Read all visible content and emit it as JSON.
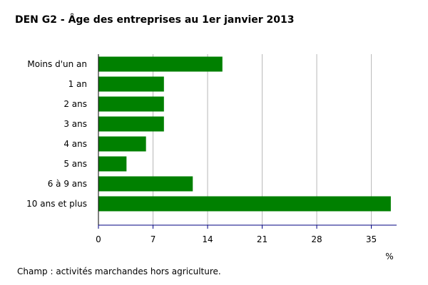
{
  "chart_data": {
    "type": "bar",
    "orientation": "horizontal",
    "title": "DEN G2 - Âge des entreprises au 1er janvier 2013",
    "categories": [
      "Moins d'un an",
      "1 an",
      "2 ans",
      "3 ans",
      "4 ans",
      "5 ans",
      "6 à 9 ans",
      "10 ans et plus"
    ],
    "values": [
      15.9,
      8.4,
      8.4,
      8.4,
      6.1,
      3.6,
      12.1,
      37.5
    ],
    "xticks": [
      "0",
      "7",
      "14",
      "21",
      "28",
      "35"
    ],
    "xlim": [
      0,
      38
    ],
    "xlabel": "%",
    "grid": true,
    "bar_color": "#008000",
    "axis_color": "#000080"
  },
  "footnote": "Champ : activités marchandes hors agriculture."
}
